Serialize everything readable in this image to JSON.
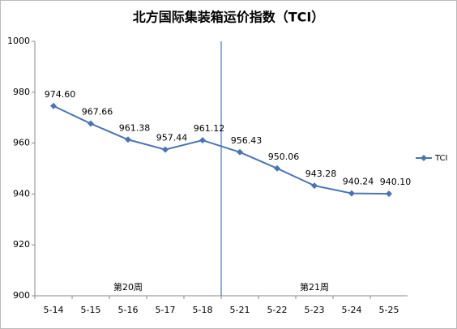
{
  "chart_data": {
    "type": "line",
    "title": "北方国际集装箱运价指数（TCI）",
    "categories": [
      "5-14",
      "5-15",
      "5-16",
      "5-17",
      "5-18",
      "5-21",
      "5-22",
      "5-23",
      "5-24",
      "5-25"
    ],
    "series": [
      {
        "name": "TCI",
        "color": "#4a74b5",
        "values": [
          974.6,
          967.66,
          961.38,
          957.44,
          961.12,
          956.43,
          950.06,
          943.28,
          940.24,
          940.1
        ],
        "value_labels": [
          "974.60",
          "967.66",
          "961.38",
          "957.44",
          "961.12",
          "956.43",
          "950.06",
          "943.28",
          "940.24",
          "940.10"
        ]
      }
    ],
    "annotations": [
      "第20周",
      "第21周"
    ],
    "ylim": [
      900,
      1000
    ],
    "yticks": [
      900,
      920,
      940,
      960,
      980,
      1000
    ],
    "grid": false,
    "legend": "right"
  }
}
